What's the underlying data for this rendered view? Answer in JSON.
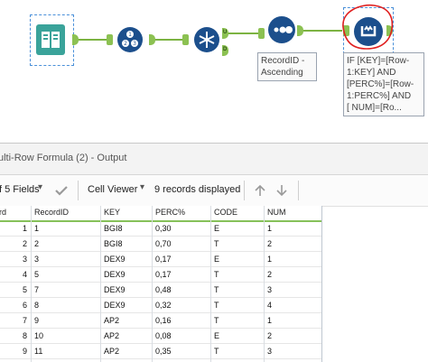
{
  "workflow": {
    "annotation_sort": [
      "RecordID -",
      "Ascending"
    ],
    "annotation_formula": [
      "IF [KEY]=[Row-",
      "1:KEY] AND",
      "[PERC%]=[Row-",
      "1:PERC%] AND",
      "[ NUM]=[Ro..."
    ],
    "anchor_u": "U",
    "anchor_d": "D"
  },
  "results": {
    "title": "ulti-Row Formula (2) - Output",
    "fields_label": "f 5 Fields",
    "cell_viewer_label": "Cell Viewer",
    "records_label": "9 records displayed",
    "columns": [
      "rd",
      "RecordID",
      "KEY",
      "PERC%",
      "CODE",
      "NUM"
    ],
    "rows": [
      {
        "n": "1",
        "id": "1",
        "key": "BGI8",
        "perc": "0,30",
        "code": "E",
        "num": "1"
      },
      {
        "n": "2",
        "id": "2",
        "key": "BGI8",
        "perc": "0,70",
        "code": "T",
        "num": "2"
      },
      {
        "n": "3",
        "id": "3",
        "key": "DEX9",
        "perc": "0,17",
        "code": "E",
        "num": "1"
      },
      {
        "n": "4",
        "id": "5",
        "key": "DEX9",
        "perc": "0,17",
        "code": "T",
        "num": "2"
      },
      {
        "n": "5",
        "id": "7",
        "key": "DEX9",
        "perc": "0,48",
        "code": "T",
        "num": "3"
      },
      {
        "n": "6",
        "id": "8",
        "key": "DEX9",
        "perc": "0,32",
        "code": "T",
        "num": "4"
      },
      {
        "n": "7",
        "id": "9",
        "key": "AP2",
        "perc": "0,16",
        "code": "T",
        "num": "1"
      },
      {
        "n": "8",
        "id": "10",
        "key": "AP2",
        "perc": "0,08",
        "code": "E",
        "num": "2"
      },
      {
        "n": "9",
        "id": "11",
        "key": "AP2",
        "perc": "0,35",
        "code": "T",
        "num": "3"
      }
    ]
  },
  "colors": {
    "tool_teal": "#1f8a8a",
    "tool_blue": "#1c4f8c",
    "anchor_green": "#8cc152",
    "highlight_red": "#e02020",
    "grid_header_line": "#86c15a"
  }
}
